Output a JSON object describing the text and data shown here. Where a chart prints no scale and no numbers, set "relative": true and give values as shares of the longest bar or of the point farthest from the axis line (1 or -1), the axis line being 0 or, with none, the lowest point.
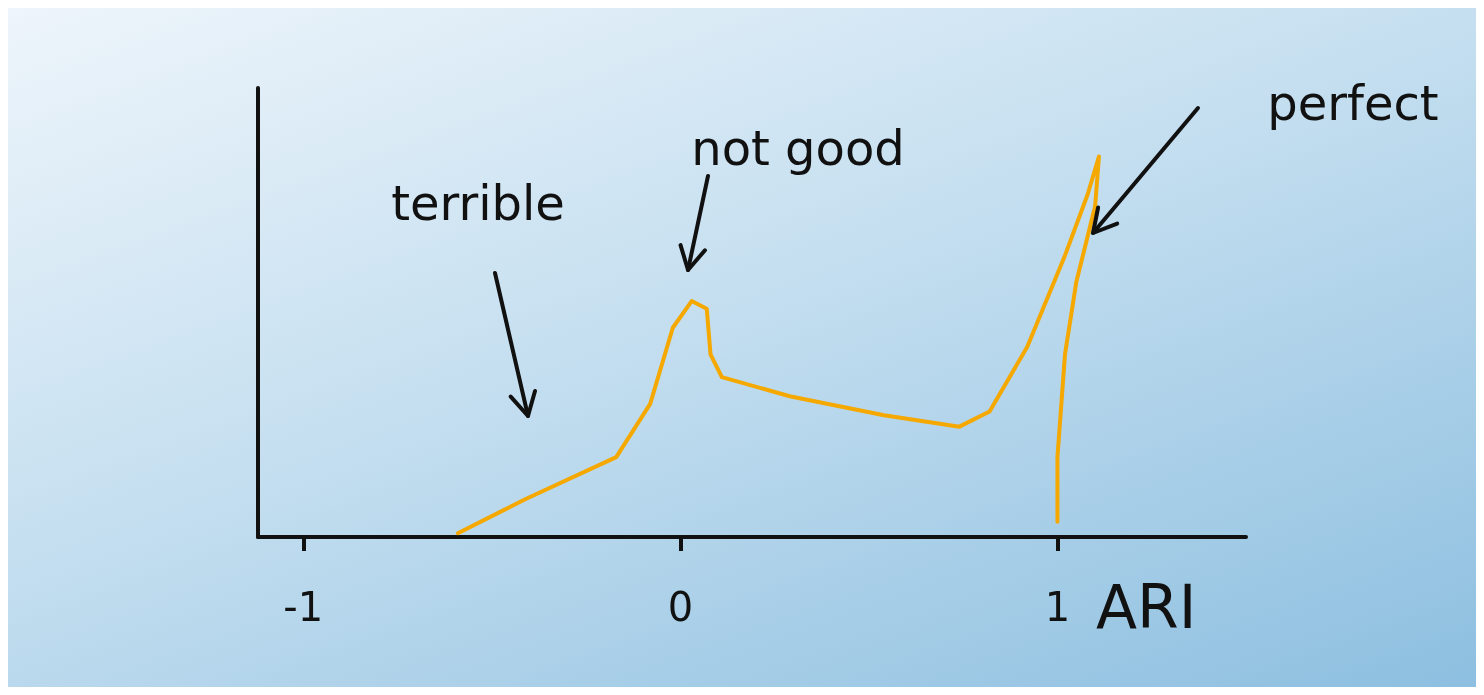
{
  "chart_data": {
    "type": "line",
    "xlabel": "ARI",
    "relative": true,
    "tick_labels": "x",
    "grid": false,
    "marker": "none",
    "line_style": "solid",
    "xlim": [
      -1.12,
      1.5
    ],
    "xticks": [
      -1,
      0,
      1
    ],
    "series": [
      {
        "color": "#f5a800",
        "x": [
          -0.59,
          -0.41,
          -0.17,
          -0.08,
          -0.02,
          0.03,
          0.07,
          0.08,
          0.11,
          0.29,
          0.54,
          0.74,
          0.82,
          0.92,
          1.02,
          1.08,
          1.11,
          1.1,
          1.05,
          1.02,
          1.0,
          1.0
        ],
        "values": [
          0.01,
          0.1,
          0.21,
          0.35,
          0.55,
          0.62,
          0.6,
          0.48,
          0.42,
          0.37,
          0.32,
          0.29,
          0.33,
          0.5,
          0.74,
          0.9,
          1.0,
          0.87,
          0.67,
          0.48,
          0.21,
          0.04
        ]
      }
    ],
    "annotations": [
      "terrible",
      "not good",
      "perfect"
    ]
  }
}
